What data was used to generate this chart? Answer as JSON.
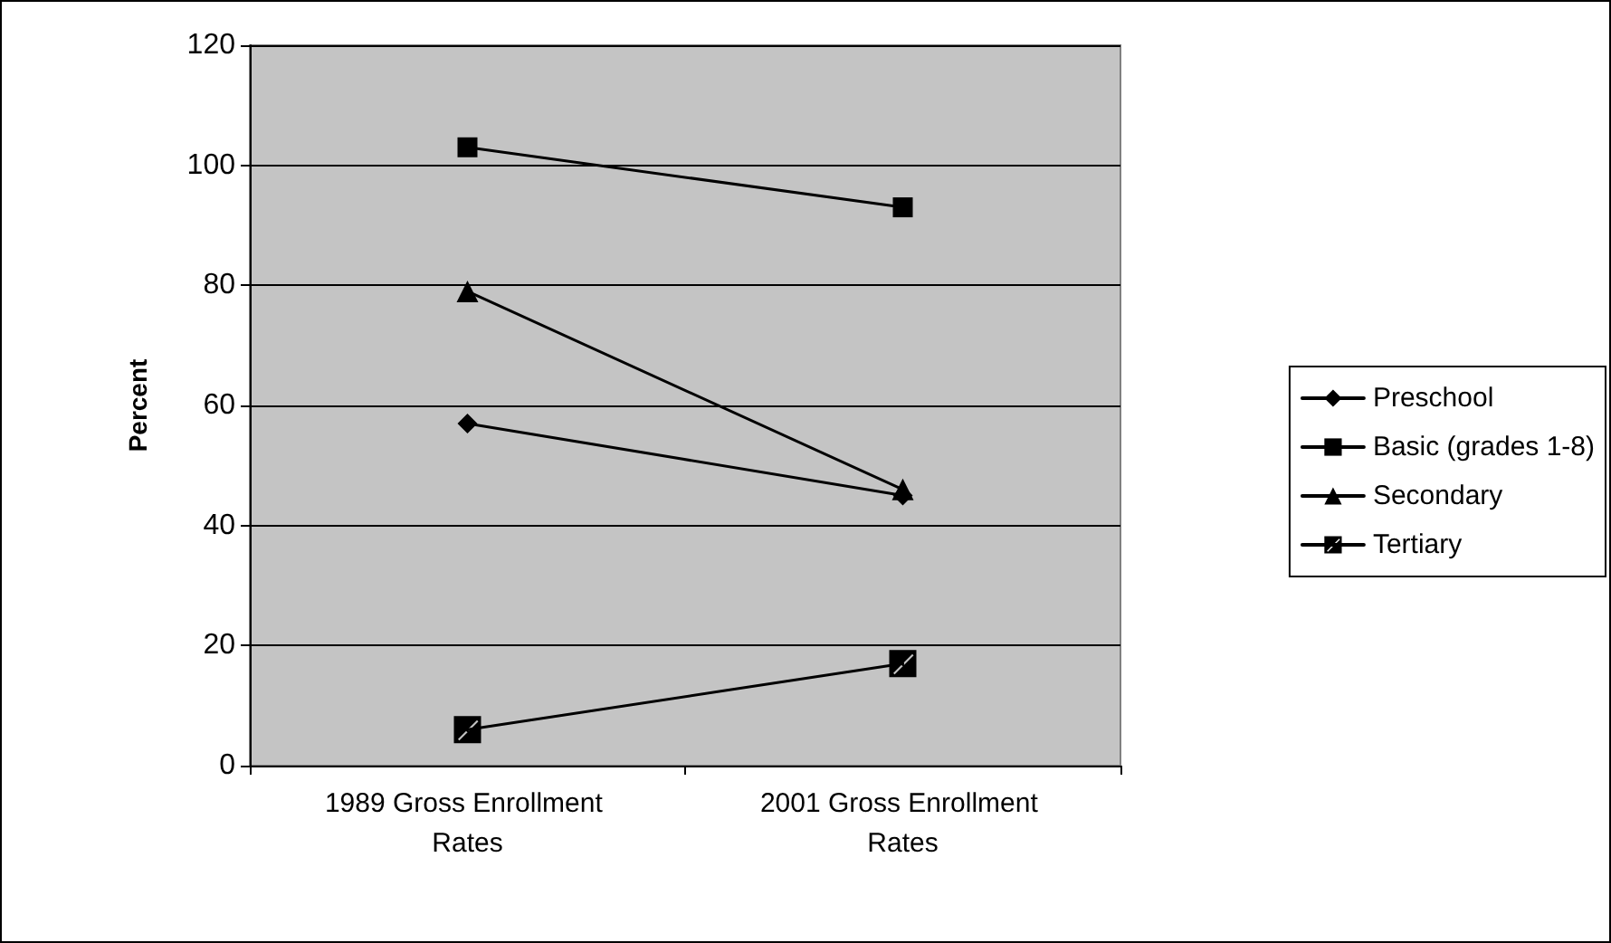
{
  "chart_data": {
    "type": "line",
    "ylabel": "Percent",
    "categories": [
      "1989 Gross Enrollment Rates",
      "2001 Gross Enrollment Rates"
    ],
    "series": [
      {
        "name": "Preschool",
        "color": "#000000",
        "marker": "diamond",
        "values": [
          57,
          45
        ]
      },
      {
        "name": "Basic (grades 1-8)",
        "color": "#000000",
        "marker": "square",
        "values": [
          103,
          93
        ]
      },
      {
        "name": "Secondary",
        "color": "#000000",
        "marker": "triangle",
        "values": [
          79,
          46
        ]
      },
      {
        "name": "Tertiary",
        "color": "#000000",
        "marker": "cross",
        "values": [
          6,
          17
        ]
      }
    ],
    "ylim": [
      0,
      120
    ],
    "yticks": [
      0,
      20,
      40,
      60,
      80,
      100,
      120
    ],
    "grid": "y",
    "legend": "right",
    "line_style": "solid"
  }
}
